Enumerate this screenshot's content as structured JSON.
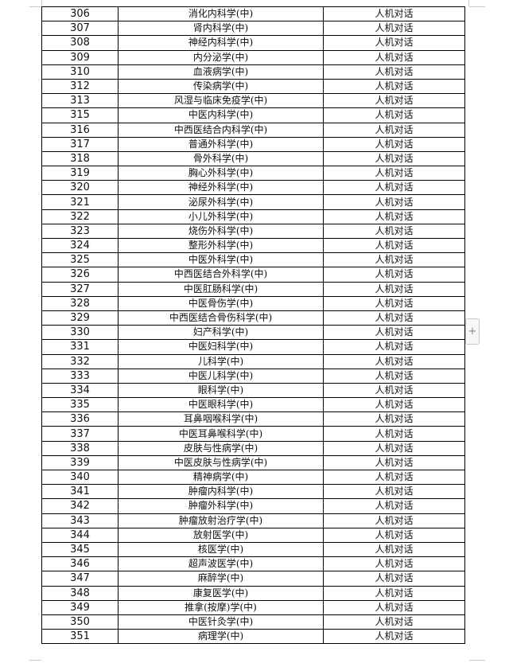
{
  "table": {
    "rows": [
      [
        "306",
        "消化内科学(中)",
        "人机对话"
      ],
      [
        "307",
        "肾内科学(中)",
        "人机对话"
      ],
      [
        "308",
        "神经内科学(中)",
        "人机对话"
      ],
      [
        "309",
        "内分泌学(中)",
        "人机对话"
      ],
      [
        "310",
        "血液病学(中)",
        "人机对话"
      ],
      [
        "312",
        "传染病学(中)",
        "人机对话"
      ],
      [
        "313",
        "风湿与临床免疫学(中)",
        "人机对话"
      ],
      [
        "315",
        "中医内科学(中)",
        "人机对话"
      ],
      [
        "316",
        "中西医结合内科学(中)",
        "人机对话"
      ],
      [
        "317",
        "普通外科学(中)",
        "人机对话"
      ],
      [
        "318",
        "骨外科学(中)",
        "人机对话"
      ],
      [
        "319",
        "胸心外科学(中)",
        "人机对话"
      ],
      [
        "320",
        "神经外科学(中)",
        "人机对话"
      ],
      [
        "321",
        "泌尿外科学(中)",
        "人机对话"
      ],
      [
        "322",
        "小儿外科学(中)",
        "人机对话"
      ],
      [
        "323",
        "烧伤外科学(中)",
        "人机对话"
      ],
      [
        "324",
        "整形外科学(中)",
        "人机对话"
      ],
      [
        "325",
        "中医外科学(中)",
        "人机对话"
      ],
      [
        "326",
        "中西医结合外科学(中)",
        "人机对话"
      ],
      [
        "327",
        "中医肛肠科学(中)",
        "人机对话"
      ],
      [
        "328",
        "中医骨伤学(中)",
        "人机对话"
      ],
      [
        "329",
        "中西医结合骨伤科学(中)",
        "人机对话"
      ],
      [
        "330",
        "妇产科学(中)",
        "人机对话"
      ],
      [
        "331",
        "中医妇科学(中)",
        "人机对话"
      ],
      [
        "332",
        "儿科学(中)",
        "人机对话"
      ],
      [
        "333",
        "中医儿科学(中)",
        "人机对话"
      ],
      [
        "334",
        "眼科学(中)",
        "人机对话"
      ],
      [
        "335",
        "中医眼科学(中)",
        "人机对话"
      ],
      [
        "336",
        "耳鼻咽喉科学(中)",
        "人机对话"
      ],
      [
        "337",
        "中医耳鼻喉科学(中)",
        "人机对话"
      ],
      [
        "338",
        "皮肤与性病学(中)",
        "人机对话"
      ],
      [
        "339",
        "中医皮肤与性病学(中)",
        "人机对话"
      ],
      [
        "340",
        "精神病学(中)",
        "人机对话"
      ],
      [
        "341",
        "肿瘤内科学(中)",
        "人机对话"
      ],
      [
        "342",
        "肿瘤外科学(中)",
        "人机对话"
      ],
      [
        "343",
        "肿瘤放射治疗学(中)",
        "人机对话"
      ],
      [
        "344",
        "放射医学(中)",
        "人机对话"
      ],
      [
        "345",
        "核医学(中)",
        "人机对话"
      ],
      [
        "346",
        "超声波医学(中)",
        "人机对话"
      ],
      [
        "347",
        "麻醉学(中)",
        "人机对话"
      ],
      [
        "348",
        "康复医学(中)",
        "人机对话"
      ],
      [
        "349",
        "推拿(按摩)学(中)",
        "人机对话"
      ],
      [
        "350",
        "中医针灸学(中)",
        "人机对话"
      ],
      [
        "351",
        "病理学(中)",
        "人机对话"
      ]
    ]
  },
  "add_button": {
    "label": "+",
    "icon": "plus-icon"
  }
}
